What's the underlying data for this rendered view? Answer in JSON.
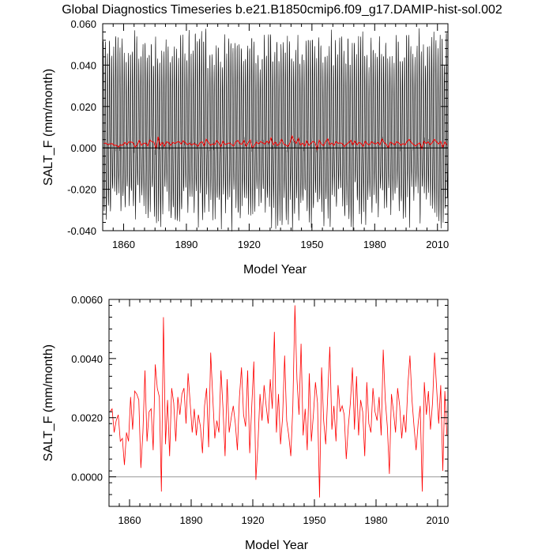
{
  "title": "Global Diagnostics Timeseries b.e21.B1850cmip6.f09_g17.DAMIP-hist-sol.002",
  "colors": {
    "monthly": "#000000",
    "annual": "#ff0000",
    "zero_line": "#000000",
    "zero_line_lower": "#999999"
  },
  "chart_data": [
    {
      "type": "line",
      "xlabel": "Model Year",
      "ylabel": "SALT_F (mm/month)",
      "xlim": [
        1850,
        2015
      ],
      "ylim": [
        -0.04,
        0.06
      ],
      "xticks": [
        1860,
        1890,
        1920,
        1950,
        1980,
        2010
      ],
      "yticks": [
        -0.04,
        -0.02,
        0.0,
        0.02,
        0.04,
        0.06
      ],
      "ytick_labels": [
        "-0.040",
        "-0.020",
        "0.000",
        "0.020",
        "0.040",
        "0.060"
      ],
      "reference_line": 0.0,
      "series": [
        {
          "style": "monthly",
          "seasonal_amplitude": 0.028,
          "annual_max_range": [
            0.04,
            0.056
          ],
          "annual_min_range": [
            -0.038,
            -0.018
          ],
          "color": "#000000"
        },
        {
          "style": "annual",
          "color": "#ff0000"
        }
      ]
    },
    {
      "type": "line",
      "xlabel": "Model Year",
      "ylabel": "SALT_F (mm/month)",
      "xlim": [
        1850,
        2015
      ],
      "ylim": [
        -0.001,
        0.006
      ],
      "xticks": [
        1860,
        1890,
        1920,
        1950,
        1980,
        2010
      ],
      "yticks": [
        0.0,
        0.002,
        0.004,
        0.006
      ],
      "ytick_labels": [
        "0.0000",
        "0.0020",
        "0.0040",
        "0.0060"
      ],
      "reference_line": 0.0,
      "series": [
        {
          "style": "annual",
          "color": "#ff0000",
          "x_start": 1850,
          "x_step": 1,
          "values": [
            0.0022,
            0.0023,
            0.0015,
            0.0019,
            0.0021,
            0.0012,
            0.0013,
            0.0004,
            0.0015,
            0.0012,
            0.0027,
            0.0016,
            0.0029,
            0.0028,
            0.0026,
            0.0003,
            0.0015,
            0.0036,
            0.0012,
            0.0022,
            0.0023,
            0.0009,
            0.0038,
            0.003,
            0.0027,
            -0.0005,
            0.0054,
            0.0011,
            0.0026,
            0.0007,
            0.003,
            0.0025,
            0.0012,
            0.0027,
            0.0021,
            0.0028,
            0.003,
            0.0018,
            0.0035,
            0.0025,
            0.0015,
            0.0023,
            0.0014,
            0.0021,
            0.0017,
            0.0008,
            0.0024,
            0.003,
            0.001,
            0.0042,
            0.0027,
            0.0013,
            0.0019,
            0.0015,
            0.0036,
            0.0023,
            0.0007,
            0.0033,
            0.0015,
            0.002,
            0.0024,
            0.0018,
            0.0009,
            0.0027,
            0.0037,
            0.0021,
            0.0017,
            0.0036,
            0.0008,
            0.0024,
            0.0039,
            -0.0001,
            0.0011,
            0.0028,
            0.0019,
            0.0031,
            0.0024,
            0.0018,
            0.0033,
            0.0023,
            0.0049,
            0.0015,
            0.0028,
            0.0011,
            0.002,
            0.0041,
            0.0019,
            0.0014,
            0.0007,
            0.0024,
            0.0058,
            0.0033,
            0.0021,
            0.0045,
            0.0014,
            0.0023,
            0.0009,
            0.0035,
            0.0012,
            0.0021,
            0.0032,
            0.0025,
            -0.0007,
            0.0037,
            0.0019,
            0.0011,
            0.0028,
            0.0044,
            0.0016,
            0.0024,
            0.0012,
            0.0031,
            0.0022,
            0.0024,
            0.0021,
            0.0006,
            0.0017,
            0.0025,
            0.0037,
            0.0016,
            0.0034,
            0.0014,
            0.0026,
            0.0022,
            0.0007,
            0.0032,
            0.0018,
            0.0015,
            0.003,
            0.0022,
            0.0019,
            0.0027,
            0.0014,
            0.0043,
            0.0026,
            0.0017,
            0.0001,
            0.0028,
            0.0022,
            0.0015,
            0.003,
            0.0024,
            0.0013,
            0.0021,
            0.0015,
            0.0031,
            0.0041,
            0.0026,
            0.0017,
            0.0009,
            0.0018,
            0.0024,
            -0.0005,
            0.0032,
            0.0021,
            0.0029,
            0.0016,
            0.0025,
            0.0042,
            0.003,
            0.0018,
            0.0031,
            0.0002,
            0.0029,
            0.0014
          ]
        }
      ]
    }
  ]
}
